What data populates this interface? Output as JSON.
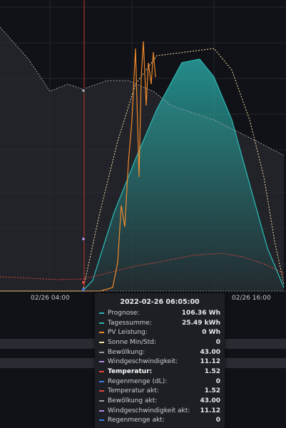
{
  "chart_data": {
    "type": "area",
    "x_ticks": [
      "02/26 04:00",
      "02/26 16:00"
    ],
    "series": [
      {
        "name": "Prognose",
        "color": "#2bb5b0",
        "points": [
          [
            0,
            0
          ],
          [
            116,
            0
          ],
          [
            130,
            -15
          ],
          [
            160,
            -110
          ],
          [
            190,
            -185
          ],
          [
            220,
            -255
          ],
          [
            255,
            -320
          ],
          [
            280,
            -325
          ],
          [
            300,
            -300
          ],
          [
            325,
            -240
          ],
          [
            350,
            -150
          ],
          [
            375,
            -60
          ],
          [
            398,
            -5
          ]
        ]
      },
      {
        "name": "PV Leistung",
        "color": "#f08a2c",
        "points": [
          [
            0,
            0
          ],
          [
            140,
            0
          ],
          [
            148,
            -2
          ],
          [
            158,
            -5
          ],
          [
            165,
            -40
          ],
          [
            170,
            -120
          ],
          [
            175,
            -90
          ],
          [
            180,
            -180
          ],
          [
            185,
            -240
          ],
          [
            190,
            -340
          ],
          [
            195,
            -160
          ],
          [
            198,
            -300
          ],
          [
            201,
            -350
          ],
          [
            205,
            -260
          ],
          [
            208,
            -320
          ],
          [
            212,
            -290
          ],
          [
            215,
            -335
          ],
          [
            218,
            -300
          ]
        ]
      },
      {
        "name": "Sonne Min/Std",
        "color": "#f5e3a8",
        "points": [
          [
            116,
            0
          ],
          [
            140,
            -110
          ],
          [
            165,
            -210
          ],
          [
            190,
            -290
          ],
          [
            220,
            -330
          ],
          [
            260,
            -335
          ],
          [
            300,
            -340
          ],
          [
            325,
            -310
          ],
          [
            350,
            -240
          ],
          [
            370,
            -160
          ],
          [
            385,
            -70
          ],
          [
            398,
            -10
          ]
        ]
      },
      {
        "name": "Bewölkung",
        "color": "#9aa0a6",
        "points": [
          [
            0,
            -370
          ],
          [
            40,
            -325
          ],
          [
            70,
            -280
          ],
          [
            95,
            -290
          ],
          [
            116,
            -283
          ],
          [
            150,
            -295
          ],
          [
            180,
            -295
          ],
          [
            215,
            -280
          ],
          [
            240,
            -260
          ],
          [
            270,
            -250
          ],
          [
            300,
            -240
          ],
          [
            330,
            -225
          ],
          [
            360,
            -210
          ],
          [
            398,
            -190
          ]
        ]
      },
      {
        "name": "Temperatur",
        "color": "#e0453a",
        "points": [
          [
            0,
            -20
          ],
          [
            40,
            -18
          ],
          [
            80,
            -16
          ],
          [
            116,
            -17
          ],
          [
            150,
            -25
          ],
          [
            190,
            -35
          ],
          [
            230,
            -42
          ],
          [
            270,
            -50
          ],
          [
            310,
            -53
          ],
          [
            340,
            -48
          ],
          [
            370,
            -38
          ],
          [
            398,
            -25
          ]
        ]
      }
    ]
  },
  "tooltip": {
    "title": "2022-02-26 06:05:00",
    "rows": [
      {
        "name": "Prognose:",
        "value": "106.36 Wh",
        "color": "#2bb5b0",
        "highlight": false
      },
      {
        "name": "Tagessumme:",
        "value": "25.49 kWh",
        "color": "#2bb5b0",
        "highlight": false
      },
      {
        "name": "PV Leistung:",
        "value": "0 Wh",
        "color": "#f08a2c",
        "highlight": false
      },
      {
        "name": "Sonne Min/Std:",
        "value": "0",
        "color": "#f5e3a8",
        "highlight": false
      },
      {
        "name": "Bewölkung:",
        "value": "43.00",
        "color": "#9aa0a6",
        "highlight": false
      },
      {
        "name": "Windgeschwindigkeit:",
        "value": "11.12",
        "color": "#b08be0",
        "highlight": false
      },
      {
        "name": "Temperatur:",
        "value": "1.52",
        "color": "#e0453a",
        "highlight": true
      },
      {
        "name": "Regenmenge (dL):",
        "value": "0",
        "color": "#3a7be0",
        "highlight": false
      },
      {
        "name": "Temperatur akt:",
        "value": "1.52",
        "color": "#e0453a",
        "highlight": false
      },
      {
        "name": "Bewölkung akt:",
        "value": "43.00",
        "color": "#9aa0a6",
        "highlight": false
      },
      {
        "name": "Windgeschwindigkeit akt:",
        "value": "11.12",
        "color": "#b08be0",
        "highlight": false
      },
      {
        "name": "Regenmenge akt:",
        "value": "0",
        "color": "#3a7be0",
        "highlight": false
      }
    ]
  }
}
